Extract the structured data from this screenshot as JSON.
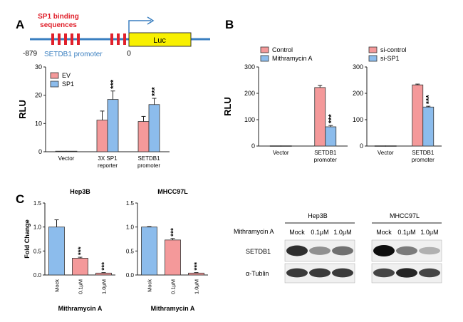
{
  "panels": {
    "A": "A",
    "B": "B",
    "C": "C"
  },
  "promoter_diagram": {
    "binding_label_1": "SP1 binding",
    "binding_label_2": "sequences",
    "pos_start": "-879",
    "pos_end": "0",
    "promoter_label": "SETDB1 promoter",
    "luc_label": "Luc",
    "colors": {
      "site": "#e0202b",
      "line": "#3a7fc0",
      "luc": "#f8f000"
    }
  },
  "colors": {
    "pink": "#f4999a",
    "blue": "#8cbcec",
    "edge": "#333333"
  },
  "sig": "***",
  "chart_data": [
    {
      "id": "A",
      "type": "bar",
      "ylabel": "RLU",
      "ylim": [
        0,
        30
      ],
      "yticks": [
        "0",
        "10",
        "20",
        "30"
      ],
      "categories": [
        [
          "Vector"
        ],
        [
          "3X SP1",
          "reporter"
        ],
        [
          "SETDB1",
          "promoter"
        ]
      ],
      "series": [
        {
          "name": "EV",
          "values": [
            0.2,
            11.2,
            10.7
          ],
          "errors": [
            0,
            3.2,
            1.8
          ]
        },
        {
          "name": "SP1",
          "values": [
            0.2,
            18.5,
            16.7
          ],
          "errors": [
            0,
            3.0,
            2.2
          ]
        }
      ],
      "sig": [
        false,
        true,
        true
      ],
      "legend": "top-left"
    },
    {
      "id": "B1",
      "type": "bar",
      "ylabel": "RLU",
      "ylim": [
        0,
        300
      ],
      "yticks": [
        "0",
        "100",
        "200",
        "300"
      ],
      "categories": [
        [
          "Vector"
        ],
        [
          "SETDB1",
          "promoter"
        ]
      ],
      "series": [
        {
          "name": "Control",
          "values": [
            1,
            222
          ],
          "errors": [
            0,
            8
          ]
        },
        {
          "name": "Mithramycin A",
          "values": [
            1,
            73
          ],
          "errors": [
            0,
            5
          ]
        }
      ],
      "sig": [
        false,
        true
      ],
      "legend": "top-left"
    },
    {
      "id": "B2",
      "type": "bar",
      "ylim": [
        0,
        300
      ],
      "yticks": [
        "0",
        "100",
        "200",
        "300"
      ],
      "categories": [
        [
          "Vector"
        ],
        [
          "SETDB1",
          "promoter"
        ]
      ],
      "series": [
        {
          "name": "si-control",
          "values": [
            1,
            232
          ],
          "errors": [
            0,
            3
          ]
        },
        {
          "name": "si-SP1",
          "values": [
            1,
            148
          ],
          "errors": [
            0,
            3
          ]
        }
      ],
      "sig": [
        false,
        true
      ],
      "legend": "top-left"
    },
    {
      "id": "C1",
      "type": "bar",
      "title": "Hep3B",
      "ylabel": "Fold Change",
      "xlabel": "Mithramycin A",
      "ylim": [
        0,
        1.5
      ],
      "yticks": [
        "0.0",
        "0.5",
        "1.0",
        "1.5"
      ],
      "categories": [
        "Mock",
        "0.1μM",
        "1.0μM"
      ],
      "values": [
        1.0,
        0.35,
        0.04
      ],
      "errors": [
        0.15,
        0.02,
        0.01
      ],
      "sig": [
        false,
        true,
        true
      ]
    },
    {
      "id": "C2",
      "type": "bar",
      "title": "MHCC97L",
      "xlabel": "Mithramycin A",
      "ylim": [
        0,
        1.5
      ],
      "yticks": [
        "0.0",
        "0.5",
        "1.0",
        "1.5"
      ],
      "categories": [
        "Mock",
        "0.1μM",
        "1.0μM"
      ],
      "values": [
        1.0,
        0.73,
        0.04
      ],
      "errors": [
        0.01,
        0.03,
        0.01
      ],
      "sig": [
        false,
        true,
        true
      ]
    }
  ],
  "western": {
    "row_treatment": "Mithramycin A",
    "cell_lines": [
      "Hep3B",
      "MHCC97L"
    ],
    "lanes": [
      "Mock",
      "0.1μM",
      "1.0μM"
    ],
    "proteins": [
      "SETDB1",
      "α-Tublin"
    ],
    "intensities": {
      "SETDB1": [
        [
          0.85,
          0.4,
          0.55
        ],
        [
          1.0,
          0.5,
          0.25
        ]
      ],
      "α-Tublin": [
        [
          0.8,
          0.8,
          0.8
        ],
        [
          0.75,
          0.9,
          0.75
        ]
      ]
    }
  }
}
